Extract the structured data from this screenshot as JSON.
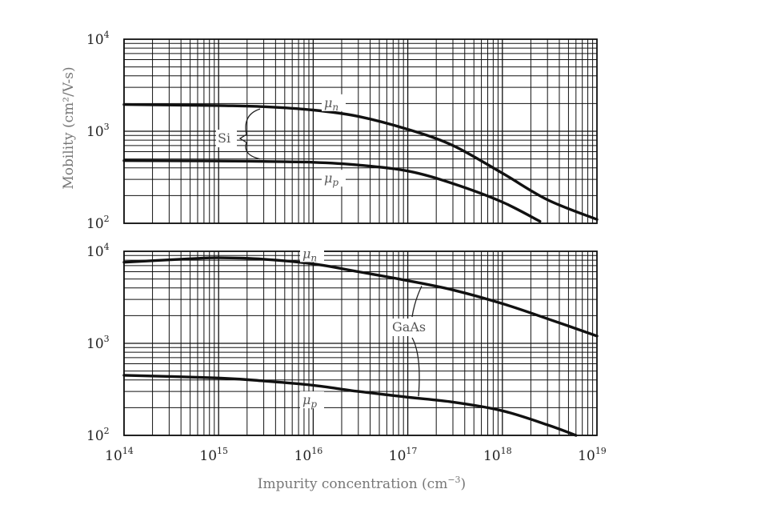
{
  "chart_data": [
    {
      "type": "line",
      "panel": "top",
      "material_label": "Si",
      "ylabel": "Mobility (cm²/V-s)",
      "xscale": "log",
      "yscale": "log",
      "xlim": [
        100000000000000.0,
        1e+19
      ],
      "ylim": [
        100,
        10000
      ],
      "grid": true,
      "y_ticks": [
        {
          "base": "10",
          "exp": "4",
          "value": 10000
        },
        {
          "base": "10",
          "exp": "3",
          "value": 1000
        },
        {
          "base": "10",
          "exp": "2",
          "value": 100
        }
      ],
      "series": [
        {
          "name": "μn",
          "label_base": "μ",
          "label_sub": "n",
          "points": [
            [
              100000000000000.0,
              1950
            ],
            [
              1000000000000000.0,
              1900
            ],
            [
              3000000000000000.0,
              1850
            ],
            [
              1e+16,
              1700
            ],
            [
              3e+16,
              1450
            ],
            [
              1e+17,
              1050
            ],
            [
              3e+17,
              700
            ],
            [
              1e+18,
              350
            ],
            [
              3e+18,
              180
            ],
            [
              1e+19,
              110
            ]
          ]
        },
        {
          "name": "μp",
          "label_base": "μ",
          "label_sub": "p",
          "points": [
            [
              100000000000000.0,
              480
            ],
            [
              1000000000000000.0,
              475
            ],
            [
              3000000000000000.0,
              470
            ],
            [
              1e+16,
              460
            ],
            [
              3e+16,
              430
            ],
            [
              1e+17,
              370
            ],
            [
              3e+17,
              270
            ],
            [
              1e+18,
              170
            ],
            [
              2.5e+18,
              105
            ]
          ]
        }
      ]
    },
    {
      "type": "line",
      "panel": "bottom",
      "material_label": "GaAs",
      "xlabel_text": "Impurity concentration (cm",
      "xlabel_sup": "−3",
      "xlabel_end": ")",
      "xscale": "log",
      "yscale": "log",
      "xlim": [
        100000000000000.0,
        1e+19
      ],
      "ylim": [
        100,
        10000
      ],
      "grid": true,
      "y_ticks": [
        {
          "base": "10",
          "exp": "4",
          "value": 10000
        },
        {
          "base": "10",
          "exp": "3",
          "value": 1000
        },
        {
          "base": "10",
          "exp": "2",
          "value": 100
        }
      ],
      "x_ticks": [
        {
          "base": "10",
          "exp": "14",
          "value": 100000000000000.0
        },
        {
          "base": "10",
          "exp": "15",
          "value": 1000000000000000.0
        },
        {
          "base": "10",
          "exp": "16",
          "value": 1e+16
        },
        {
          "base": "10",
          "exp": "17",
          "value": 1e+17
        },
        {
          "base": "10",
          "exp": "18",
          "value": 1e+18
        },
        {
          "base": "10",
          "exp": "19",
          "value": 1e+19
        }
      ],
      "series": [
        {
          "name": "μn",
          "label_base": "μ",
          "label_sub": "n",
          "points": [
            [
              100000000000000.0,
              7600
            ],
            [
              500000000000000.0,
              8300
            ],
            [
              1000000000000000.0,
              8500
            ],
            [
              3000000000000000.0,
              8200
            ],
            [
              1e+16,
              7300
            ],
            [
              3e+16,
              6000
            ],
            [
              1e+17,
              4800
            ],
            [
              3e+17,
              3800
            ],
            [
              1e+18,
              2700
            ],
            [
              3e+18,
              1850
            ],
            [
              1e+19,
              1200
            ]
          ]
        },
        {
          "name": "μp",
          "label_base": "μ",
          "label_sub": "p",
          "points": [
            [
              100000000000000.0,
              450
            ],
            [
              1000000000000000.0,
              420
            ],
            [
              3000000000000000.0,
              390
            ],
            [
              1e+16,
              350
            ],
            [
              3e+16,
              300
            ],
            [
              1e+17,
              260
            ],
            [
              3e+17,
              230
            ],
            [
              1e+18,
              185
            ],
            [
              3e+18,
              130
            ],
            [
              6e+18,
              100
            ]
          ]
        }
      ]
    }
  ]
}
